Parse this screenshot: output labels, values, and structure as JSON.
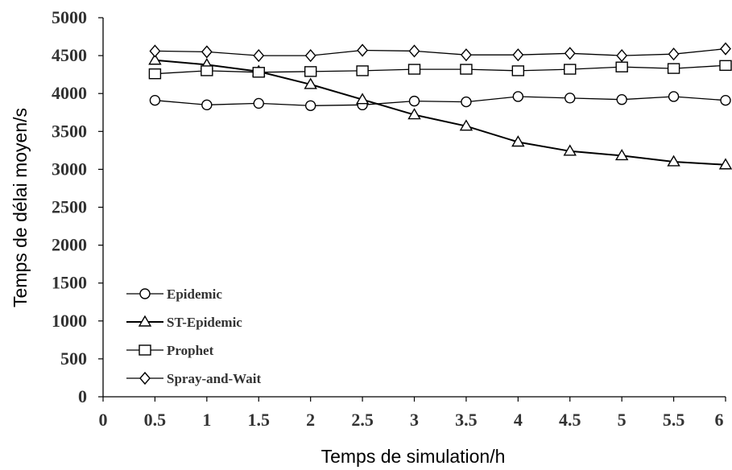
{
  "chart_data": {
    "type": "line",
    "title": "",
    "xlabel": "Temps de simulation/h",
    "ylabel": "Temps de délai moyen/s",
    "xlim": [
      0,
      6
    ],
    "ylim": [
      0,
      5000
    ],
    "x_ticks": [
      "0",
      "0.5",
      "1",
      "1.5",
      "2",
      "2.5",
      "3",
      "3.5",
      "4",
      "4.5",
      "5",
      "5.5",
      "6"
    ],
    "y_ticks": [
      "0",
      "500",
      "1000",
      "1500",
      "2000",
      "2500",
      "3000",
      "3500",
      "4000",
      "4500",
      "5000"
    ],
    "grid": false,
    "legend_position": "bottom-left",
    "x": [
      0.5,
      1,
      1.5,
      2,
      2.5,
      3,
      3.5,
      4,
      4.5,
      5,
      5.5,
      6
    ],
    "series": [
      {
        "name": "Epidemic",
        "marker": "circle",
        "color": "#000000",
        "values": [
          3910,
          3850,
          3870,
          3840,
          3850,
          3900,
          3890,
          3960,
          3940,
          3920,
          3960,
          3910
        ]
      },
      {
        "name": "ST-Epidemic",
        "marker": "triangle",
        "color": "#000000",
        "values": [
          4440,
          4380,
          4290,
          4120,
          3920,
          3720,
          3570,
          3360,
          3240,
          3180,
          3100,
          3060
        ]
      },
      {
        "name": "Prophet",
        "marker": "square",
        "color": "#000000",
        "values": [
          4260,
          4300,
          4280,
          4290,
          4300,
          4320,
          4320,
          4300,
          4320,
          4350,
          4330,
          4370
        ]
      },
      {
        "name": "Spray-and-Wait",
        "marker": "diamond",
        "color": "#000000",
        "values": [
          4560,
          4550,
          4500,
          4500,
          4570,
          4560,
          4510,
          4510,
          4530,
          4500,
          4520,
          4590
        ]
      }
    ]
  }
}
